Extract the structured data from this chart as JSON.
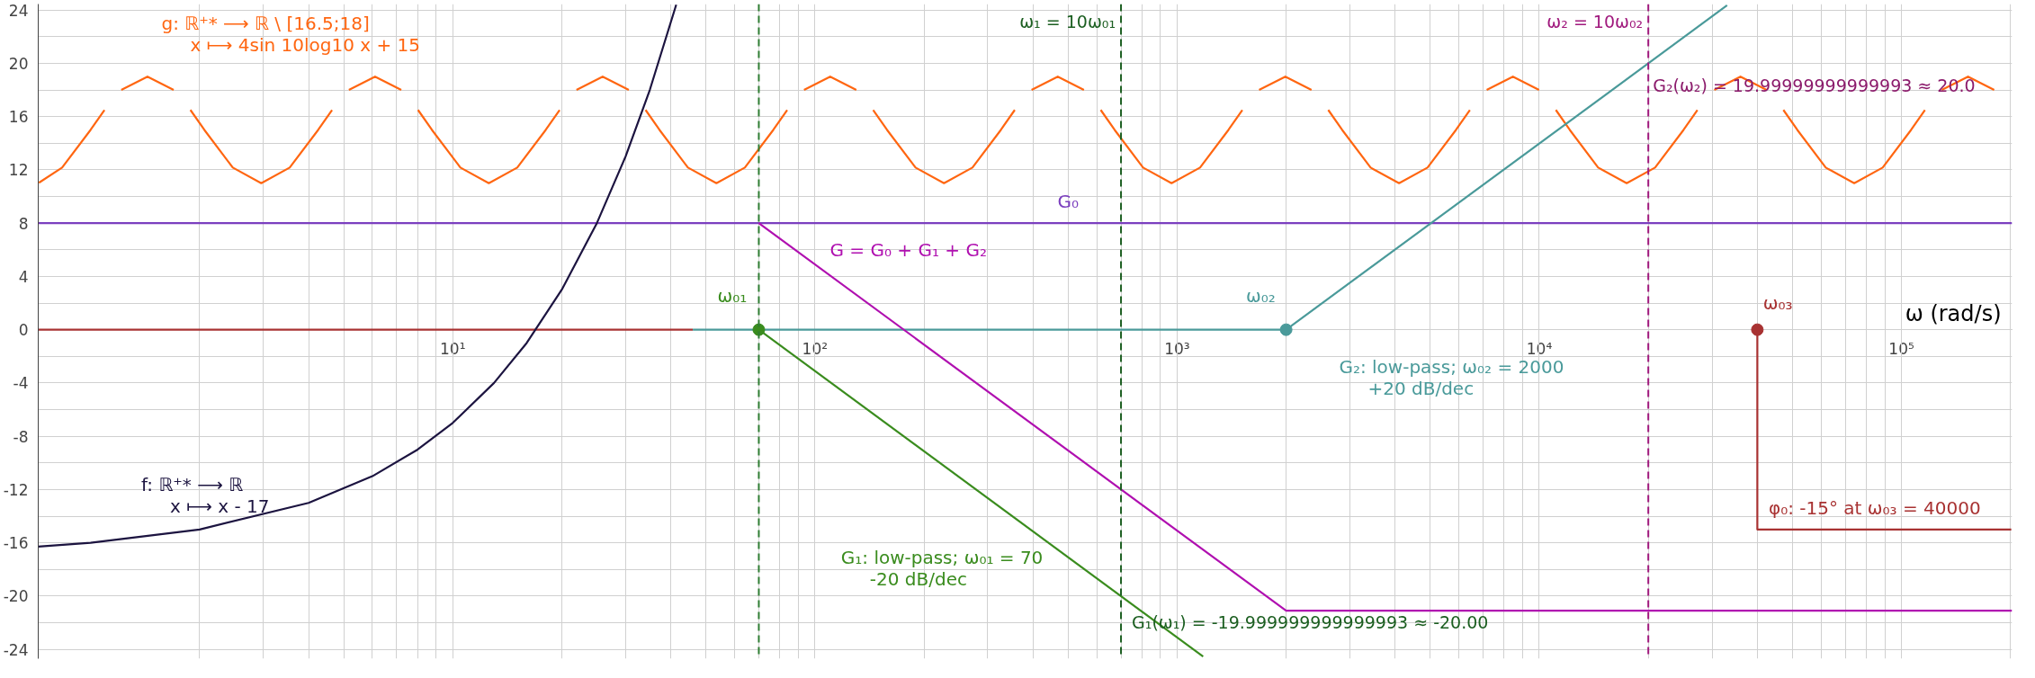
{
  "chart_data": {
    "type": "line",
    "xlabel": "ω (rad/s)",
    "log": "x",
    "grid": true,
    "marker": "none",
    "line_style": "solid",
    "xlim": [
      0.717,
      202000
    ],
    "ylim": [
      -24.7,
      24.45
    ],
    "xticks": [
      {
        "value": 10,
        "label": "10¹"
      },
      {
        "value": 100,
        "label": "10²"
      },
      {
        "value": 1000,
        "label": "10³"
      },
      {
        "value": 10000,
        "label": "10⁴"
      },
      {
        "value": 100000,
        "label": "10⁵"
      }
    ],
    "yticks": [
      -24,
      -20,
      -16,
      -12,
      -8,
      -4,
      0,
      4,
      8,
      12,
      16,
      20,
      24
    ],
    "series": [
      {
        "color": "#a83232",
        "x": [
          0.717,
          46
        ],
        "values": [
          0,
          0
        ]
      },
      {
        "name": "φ₀: -15° at ω₀₃ = 40000",
        "color": "#a83232",
        "x": [
          40000,
          40000,
          201000
        ],
        "values": [
          0,
          -15,
          -15
        ]
      },
      {
        "name": "G₀",
        "color": "#7b3fbf",
        "x": [
          0.717,
          202000
        ],
        "values": [
          8,
          8
        ]
      },
      {
        "name": "g: ℝ⁺* ⟶ ℝ \\ [16.5;18]\nx ⟼ 4sin 10log10 x + 15",
        "color": "#ff6611",
        "x": [
          0.72,
          0.8345,
          1,
          1.0925,
          1.152,
          1.2157,
          1.4361,
          1.6959,
          1.7886,
          1.8866,
          2.0617,
          2.4701,
          2.96,
          3.5466,
          4.25,
          4.643,
          4.896,
          5.167,
          6.103,
          7.208,
          7.602,
          8.018,
          8.762,
          10.5,
          12.58,
          15.07,
          18.06,
          19.73,
          20.81,
          21.96,
          25.94,
          30.63,
          32.3,
          34.07,
          37.23,
          44.61,
          53.46,
          64.05,
          76.74,
          83.84,
          88.4,
          93.29,
          110.2,
          130.1,
          137.3,
          144.8,
          158.2,
          189.6,
          227.2,
          272.2,
          326.1,
          356.3,
          375.7,
          396.4,
          468.3,
          553.0,
          583.3,
          615.2,
          672.3,
          805.5,
          965.3,
          1157,
          1386,
          1514,
          1596,
          1684,
          1990,
          2350,
          2478,
          2614,
          2856,
          3422,
          4101,
          4914,
          5888,
          6433,
          6783,
          7158,
          8456,
          9985,
          10530,
          11110,
          12140,
          14540,
          17430,
          20880,
          25020,
          27330,
          28820,
          30420,
          35930,
          42430,
          44750,
          47200,
          51580,
          61800,
          74060,
          88740,
          106300,
          116100,
          122500,
          129200,
          152700,
          180300
        ],
        "values": [
          11.03,
          12.17,
          15,
          16.5,
          null,
          18,
          19,
          18,
          null,
          16.5,
          15,
          12.17,
          11,
          12.17,
          15,
          16.5,
          null,
          18,
          19,
          18,
          null,
          16.5,
          15,
          12.17,
          11,
          12.17,
          15,
          16.5,
          null,
          18,
          19,
          18,
          null,
          16.5,
          15,
          12.17,
          11,
          12.17,
          15,
          16.5,
          null,
          18,
          19,
          18,
          null,
          16.5,
          15,
          12.17,
          11,
          12.17,
          15,
          16.5,
          null,
          18,
          19,
          18,
          null,
          16.5,
          15,
          12.17,
          11,
          12.17,
          15,
          16.5,
          null,
          18,
          19,
          18,
          null,
          16.5,
          15,
          12.17,
          11,
          12.17,
          15,
          16.5,
          null,
          18,
          19,
          18,
          null,
          16.5,
          15,
          12.17,
          11,
          12.17,
          15,
          16.5,
          null,
          18,
          19,
          18,
          null,
          16.5,
          15,
          12.17,
          11,
          12.17,
          15,
          16.5,
          null,
          18,
          19,
          18
        ]
      },
      {
        "name": "f: ℝ⁺* ⟶ ℝ\nx ⟼ x - 17",
        "color": "#1c1440",
        "x": [
          0.717,
          1,
          2,
          4,
          6,
          8,
          10,
          13,
          16,
          20,
          25,
          30,
          35,
          41.4
        ],
        "values": [
          -16.28,
          -16,
          -15,
          -13,
          -11,
          -9,
          -7,
          -4,
          -1,
          3,
          8,
          13,
          18,
          24.4
        ]
      },
      {
        "name": "G₂: low-pass; ω₀₂ = 2000\n+20 dB/dec",
        "color": "#4a9a9a",
        "x": [
          46,
          2000,
          33000
        ],
        "values": [
          0,
          0,
          24.35
        ]
      },
      {
        "name": "G₁: low-pass; ω₀₁ = 70\n-20 dB/dec",
        "color": "#3a8c1e",
        "x": [
          70,
          1180
        ],
        "values": [
          0,
          -24.54
        ]
      },
      {
        "name": "G = G₀ + G₁ + G₂",
        "color": "#b010b0",
        "x": [
          70,
          2000,
          202000
        ],
        "values": [
          8,
          -21.1,
          -21.1
        ]
      },
      {
        "name": "ω₀₁",
        "type": "scatter",
        "marker": "circle",
        "color": "#3a8c1e",
        "x": [
          70
        ],
        "values": [
          0
        ]
      },
      {
        "name": "ω₀₂",
        "type": "scatter",
        "marker": "circle",
        "color": "#4a9a9a",
        "x": [
          2000
        ],
        "values": [
          0
        ]
      },
      {
        "name": "ω₀₃",
        "type": "scatter",
        "marker": "circle",
        "color": "#a83232",
        "x": [
          40000
        ],
        "values": [
          0
        ]
      }
    ],
    "ref_lines": [
      {
        "axis": "x",
        "value": 70,
        "label": null,
        "color": "#2e7d32",
        "line_style": "dashed"
      },
      {
        "axis": "x",
        "value": 700,
        "label": null,
        "color": "#1b5e20",
        "line_style": "dashed"
      },
      {
        "axis": "x",
        "value": 20000,
        "label": null,
        "color": "#a0197d",
        "line_style": "dashed"
      }
    ],
    "annotations": [
      "ω₁ = 10ω₀₁",
      "ω₂ = 10ω₀₂",
      {
        "text": "G₁(ω₁) = -19.999999999999993 ≈ -20.00",
        "x": 700,
        "y": -20
      },
      {
        "text": "G₂(ω₂) = 19.99999999999993 ≈ 20.0",
        "x": 20000,
        "y": 20
      }
    ]
  }
}
